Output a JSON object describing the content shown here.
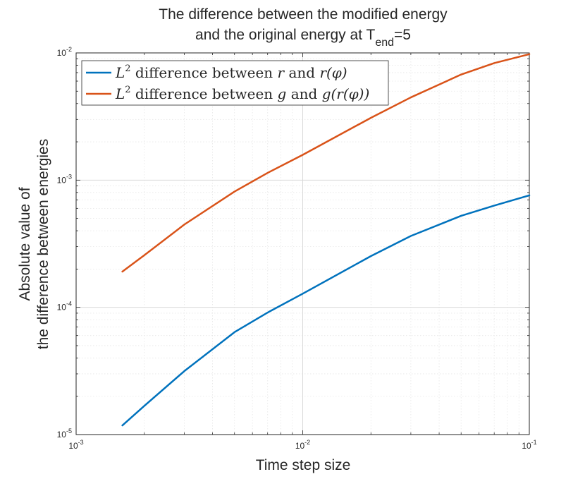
{
  "chart_data": {
    "type": "line",
    "title_line1": "The difference between the modified energy",
    "title_line2_prefix": "and the original energy at T",
    "title_line2_sub": "end",
    "title_line2_suffix": "=5",
    "xlabel": "Time step size",
    "ylabel_line1": "Absolute value of",
    "ylabel_line2": "the difference between energies",
    "xscale": "log",
    "yscale": "log",
    "xlim": [
      0.001,
      0.1
    ],
    "ylim": [
      1e-05,
      0.01
    ],
    "grid": true,
    "minor_grid": true,
    "legend_position": "top-left",
    "x_ticks": [
      {
        "value": 0.001,
        "base": "10",
        "exp": "-3"
      },
      {
        "value": 0.01,
        "base": "10",
        "exp": "-2"
      },
      {
        "value": 0.1,
        "base": "10",
        "exp": "-1"
      }
    ],
    "y_ticks": [
      {
        "value": 1e-05,
        "base": "10",
        "exp": "-5"
      },
      {
        "value": 0.0001,
        "base": "10",
        "exp": "-4"
      },
      {
        "value": 0.001,
        "base": "10",
        "exp": "-3"
      },
      {
        "value": 0.01,
        "base": "10",
        "exp": "-2"
      }
    ],
    "series": [
      {
        "name": "L^2 difference between r and r(φ)",
        "legend_label": {
          "pre": "L",
          "sup": "2",
          "mid": " difference between ",
          "v1": "r",
          "and": " and ",
          "v2": "r(φ)"
        },
        "color": "#0072BD",
        "x": [
          0.0016,
          0.002,
          0.003,
          0.005,
          0.007,
          0.01,
          0.02,
          0.03,
          0.05,
          0.07,
          0.1
        ],
        "y": [
          1.18e-05,
          1.68e-05,
          3.15e-05,
          6.38e-05,
          9.1e-05,
          0.000128,
          0.000253,
          0.000364,
          0.000524,
          0.000631,
          0.000759
        ]
      },
      {
        "name": "L^2 difference between g and g(r(φ))",
        "legend_label": {
          "pre": "L",
          "sup": "2",
          "mid": " difference between ",
          "v1": "g",
          "and": " and ",
          "v2": "g(r(φ))"
        },
        "color": "#D95319",
        "x": [
          0.0016,
          0.002,
          0.003,
          0.005,
          0.007,
          0.01,
          0.02,
          0.03,
          0.05,
          0.07,
          0.1
        ],
        "y": [
          0.000191,
          0.000257,
          0.000447,
          0.000813,
          0.00114,
          0.00158,
          0.00309,
          0.00447,
          0.00676,
          0.00832,
          0.00977
        ]
      }
    ]
  }
}
